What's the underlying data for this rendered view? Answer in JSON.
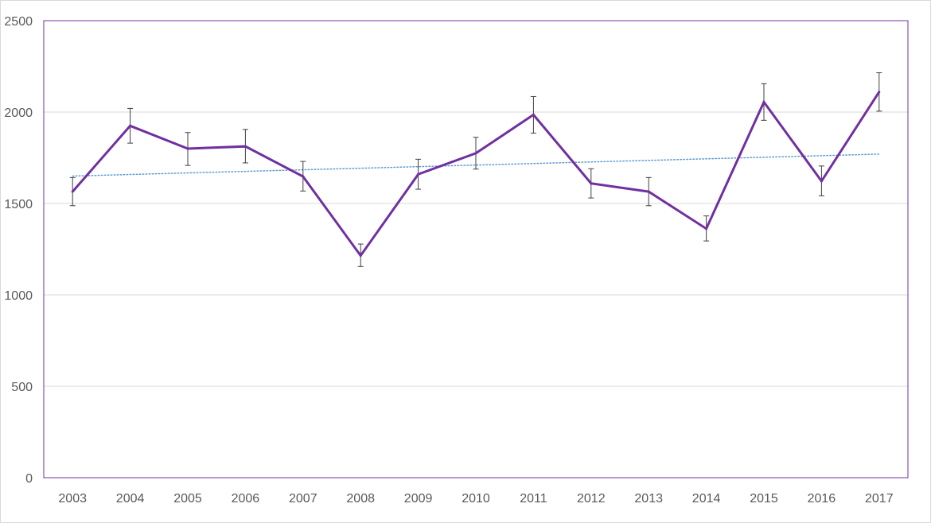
{
  "chart_data": {
    "type": "line",
    "title": "",
    "xlabel": "",
    "ylabel": "",
    "categories": [
      "2003",
      "2004",
      "2005",
      "2006",
      "2007",
      "2008",
      "2009",
      "2010",
      "2011",
      "2012",
      "2013",
      "2014",
      "2015",
      "2016",
      "2017"
    ],
    "series": [
      {
        "values": [
          1565,
          1925,
          1800,
          1812,
          1648,
          1215,
          1660,
          1775,
          1985,
          1610,
          1565,
          1362,
          2055,
          1622,
          2110
        ],
        "error_low": [
          1488,
          1830,
          1708,
          1722,
          1568,
          1155,
          1578,
          1688,
          1885,
          1530,
          1488,
          1295,
          1955,
          1542,
          2005
        ],
        "error_high": [
          1642,
          2020,
          1888,
          1905,
          1730,
          1278,
          1742,
          1862,
          2085,
          1690,
          1642,
          1432,
          2155,
          1705,
          2215
        ],
        "color": "#7030a0"
      }
    ],
    "trendline": {
      "type": "linear",
      "start": 1650,
      "end": 1770,
      "color": "#5b9bd5",
      "style": "dotted"
    },
    "ylim": [
      0,
      2500
    ],
    "yticks": [
      0,
      500,
      1000,
      1500,
      2000,
      2500
    ],
    "grid": "horizontal",
    "legend": "none",
    "plot_border_color": "#7030a0",
    "gridline_color": "#d9d9d9"
  }
}
